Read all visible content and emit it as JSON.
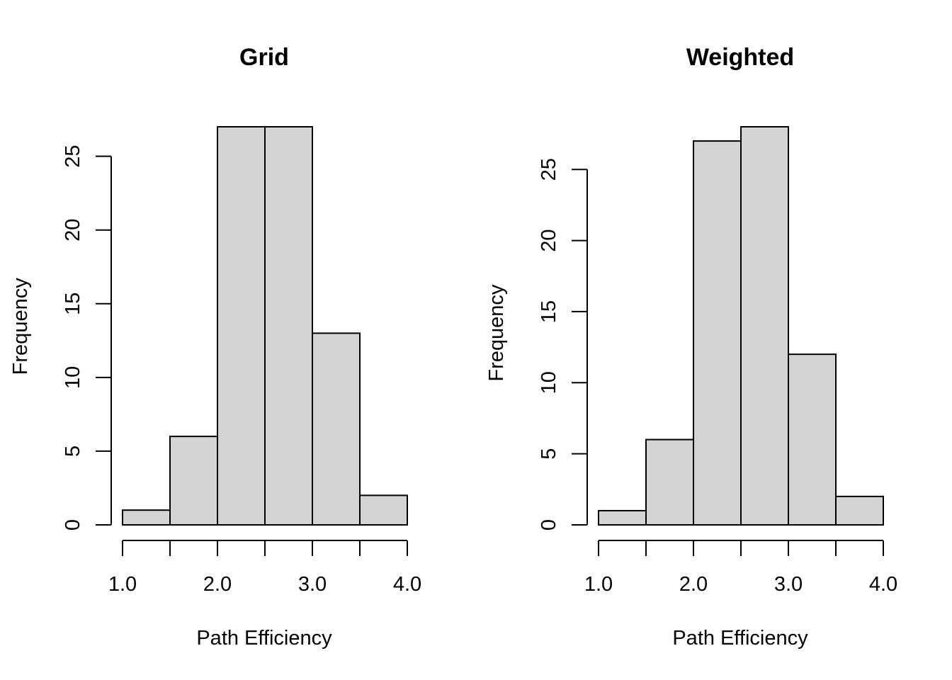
{
  "chart_data": [
    {
      "type": "bar",
      "title": "Grid",
      "xlabel": "Path Efficiency",
      "ylabel": "Frequency",
      "bins": [
        [
          1.0,
          1.5
        ],
        [
          1.5,
          2.0
        ],
        [
          2.0,
          2.5
        ],
        [
          2.5,
          3.0
        ],
        [
          3.0,
          3.5
        ],
        [
          3.5,
          4.0
        ]
      ],
      "values": [
        1,
        6,
        27,
        27,
        13,
        2
      ],
      "xlim": [
        1.0,
        4.0
      ],
      "ylim": [
        0,
        27
      ],
      "x_ticks": [
        1.0,
        1.5,
        2.0,
        2.5,
        3.0,
        3.5,
        4.0
      ],
      "x_tick_labels": [
        "1.0",
        "",
        "2.0",
        "",
        "3.0",
        "",
        "4.0"
      ],
      "y_ticks": [
        0,
        5,
        10,
        15,
        20,
        25
      ],
      "y_tick_labels": [
        "0",
        "5",
        "10",
        "15",
        "20",
        "25"
      ],
      "bar_color": "#d3d3d3",
      "grid": false
    },
    {
      "type": "bar",
      "title": "Weighted",
      "xlabel": "Path Efficiency",
      "ylabel": "Frequency",
      "bins": [
        [
          1.0,
          1.5
        ],
        [
          1.5,
          2.0
        ],
        [
          2.0,
          2.5
        ],
        [
          2.5,
          3.0
        ],
        [
          3.0,
          3.5
        ],
        [
          3.5,
          4.0
        ]
      ],
      "values": [
        1,
        6,
        27,
        28,
        12,
        2
      ],
      "xlim": [
        1.0,
        4.0
      ],
      "ylim": [
        0,
        28
      ],
      "x_ticks": [
        1.0,
        1.5,
        2.0,
        2.5,
        3.0,
        3.5,
        4.0
      ],
      "x_tick_labels": [
        "1.0",
        "",
        "2.0",
        "",
        "3.0",
        "",
        "4.0"
      ],
      "y_ticks": [
        0,
        5,
        10,
        15,
        20,
        25
      ],
      "y_tick_labels": [
        "0",
        "5",
        "10",
        "15",
        "20",
        "25"
      ],
      "bar_color": "#d3d3d3",
      "grid": false
    }
  ]
}
